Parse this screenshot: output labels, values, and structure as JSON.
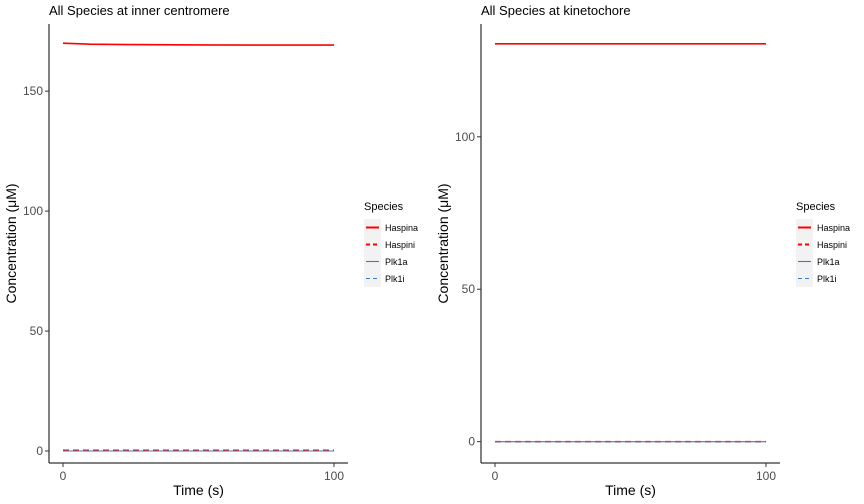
{
  "chart_data": [
    {
      "type": "line",
      "title": "All Species at inner centromere",
      "xlabel": "Time (s)",
      "ylabel": "Concentration (μM)",
      "xlim": [
        0,
        100
      ],
      "ylim": [
        -5,
        178
      ],
      "x_ticks": [
        0,
        100
      ],
      "x_tick_labels": [
        "0",
        "100"
      ],
      "y_ticks": [
        0,
        50,
        100,
        150
      ],
      "y_tick_labels": [
        "0",
        "50",
        "100",
        "150"
      ],
      "grid": false,
      "legend": {
        "title": "Species",
        "placement": "right",
        "entries": [
          "Haspina",
          "Haspini",
          "Plk1a",
          "Plk1i"
        ]
      },
      "series": [
        {
          "name": "Haspina",
          "color": "#ff0000",
          "dash": "solid",
          "x": [
            0,
            10,
            25,
            50,
            75,
            100
          ],
          "y": [
            170.0,
            169.6,
            169.4,
            169.3,
            169.2,
            169.2
          ]
        },
        {
          "name": "Haspini",
          "color": "#ff0000",
          "dash": "dashed",
          "x": [
            0,
            10,
            25,
            50,
            75,
            100
          ],
          "y": [
            0.3,
            0.3,
            0.3,
            0.3,
            0.3,
            0.3
          ]
        },
        {
          "name": "Plk1a",
          "color": "#3a7dc4",
          "dash": "solid",
          "x": [
            0,
            100
          ],
          "y": [
            0,
            0
          ]
        },
        {
          "name": "Plk1i",
          "color": "#3a7dc4",
          "dash": "dashed",
          "x": [
            0,
            100
          ],
          "y": [
            0,
            0
          ]
        }
      ]
    },
    {
      "type": "line",
      "title": "All Species at kinetochore",
      "xlabel": "Time (s)",
      "ylabel": "Concentration (μM)",
      "xlim": [
        0,
        100
      ],
      "ylim": [
        -7,
        137
      ],
      "x_ticks": [
        0,
        100
      ],
      "x_tick_labels": [
        "0",
        "100"
      ],
      "y_ticks": [
        0,
        50,
        100
      ],
      "y_tick_labels": [
        "0",
        "50",
        "100"
      ],
      "grid": false,
      "legend": {
        "title": "Species",
        "placement": "right",
        "entries": [
          "Haspina",
          "Haspini",
          "Plk1a",
          "Plk1i"
        ]
      },
      "series": [
        {
          "name": "Haspina",
          "color": "#ff0000",
          "dash": "solid",
          "x": [
            0,
            100
          ],
          "y": [
            130.5,
            130.5
          ]
        },
        {
          "name": "Haspini",
          "color": "#ff0000",
          "dash": "dashed",
          "x": [
            0,
            100
          ],
          "y": [
            0,
            0
          ]
        },
        {
          "name": "Plk1a",
          "color": "#3a7dc4",
          "dash": "solid",
          "x": [
            0,
            100
          ],
          "y": [
            0,
            0
          ]
        },
        {
          "name": "Plk1i",
          "color": "#3a7dc4",
          "dash": "dashed",
          "x": [
            0,
            100
          ],
          "y": [
            0,
            0
          ]
        }
      ]
    }
  ]
}
